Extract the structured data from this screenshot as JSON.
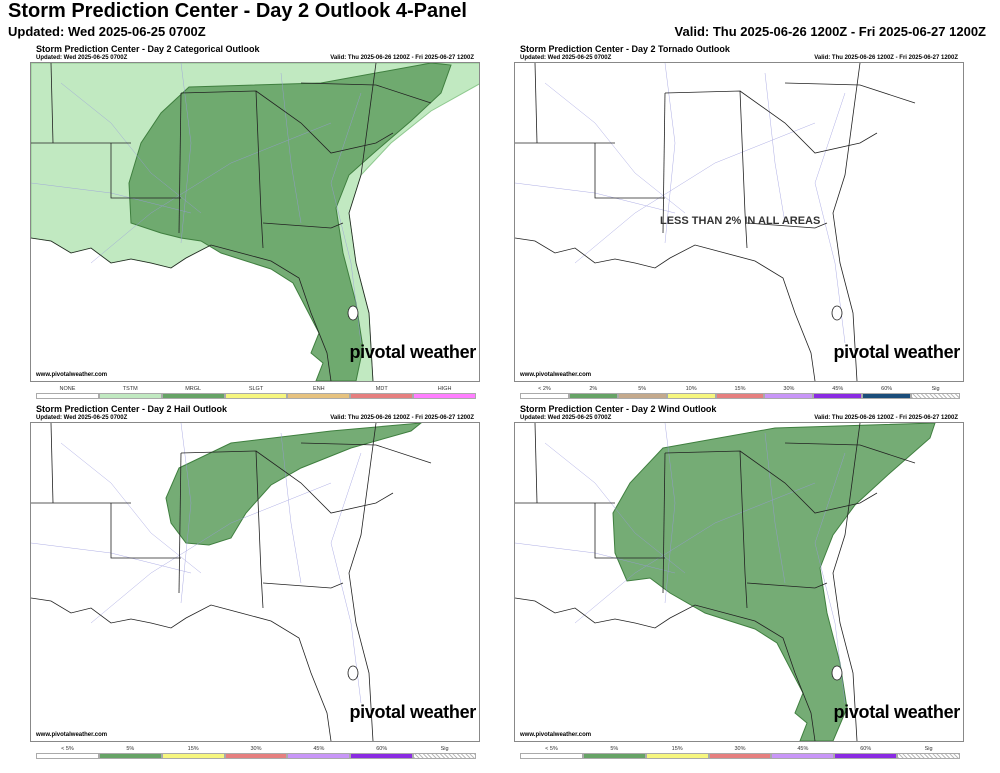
{
  "header": {
    "title": "Storm Prediction Center - Day 2 Outlook 4-Panel",
    "updated": "Updated: Wed 2025-06-25 0700Z",
    "valid": "Valid: Thu 2025-06-26 1200Z - Fri 2025-06-27 1200Z"
  },
  "panels": [
    {
      "title": "Storm Prediction Center - Day 2 Categorical Outlook",
      "updated": "Updated: Wed 2025-06-25 0700Z",
      "valid": "Valid: Thu 2025-06-26 1200Z - Fri 2025-06-27 1200Z",
      "source": "www.pivotalweather.com",
      "logo": "pivotal weather",
      "note": "",
      "legend": [
        {
          "label": "NONE",
          "color": "#ffffff"
        },
        {
          "label": "TSTM",
          "color": "#c1e9c1"
        },
        {
          "label": "MRGL",
          "color": "#66a366"
        },
        {
          "label": "SLGT",
          "color": "#f6f67f"
        },
        {
          "label": "ENH",
          "color": "#e6c27f"
        },
        {
          "label": "MDT",
          "color": "#e67f7f"
        },
        {
          "label": "HIGH",
          "color": "#ff7fff"
        }
      ]
    },
    {
      "title": "Storm Prediction Center - Day 2 Tornado Outlook",
      "updated": "Updated: Wed 2025-06-25 0700Z",
      "valid": "Valid: Thu 2025-06-26 1200Z - Fri 2025-06-27 1200Z",
      "source": "www.pivotalweather.com",
      "logo": "pivotal weather",
      "note": "LESS THAN 2% IN ALL AREAS",
      "legend": [
        {
          "label": "< 2%",
          "color": "#ffffff"
        },
        {
          "label": "2%",
          "color": "#66a366"
        },
        {
          "label": "5%",
          "color": "#c4a98c"
        },
        {
          "label": "10%",
          "color": "#f6f67f"
        },
        {
          "label": "15%",
          "color": "#e67f7f"
        },
        {
          "label": "30%",
          "color": "#c896f7"
        },
        {
          "label": "45%",
          "color": "#8a2be2"
        },
        {
          "label": "60%",
          "color": "#1a4d7a"
        },
        {
          "label": "Sig",
          "color": "hatch"
        }
      ]
    },
    {
      "title": "Storm Prediction Center - Day 2 Hail Outlook",
      "updated": "Updated: Wed 2025-06-25 0700Z",
      "valid": "Valid: Thu 2025-06-26 1200Z - Fri 2025-06-27 1200Z",
      "source": "www.pivotalweather.com",
      "logo": "pivotal weather",
      "note": "",
      "legend": [
        {
          "label": "< 5%",
          "color": "#ffffff"
        },
        {
          "label": "5%",
          "color": "#66a366"
        },
        {
          "label": "15%",
          "color": "#f6f67f"
        },
        {
          "label": "30%",
          "color": "#e67f7f"
        },
        {
          "label": "45%",
          "color": "#c896f7"
        },
        {
          "label": "60%",
          "color": "#8a2be2"
        },
        {
          "label": "Sig",
          "color": "hatch"
        }
      ]
    },
    {
      "title": "Storm Prediction Center - Day 2 Wind Outlook",
      "updated": "Updated: Wed 2025-06-25 0700Z",
      "valid": "Valid: Thu 2025-06-26 1200Z - Fri 2025-06-27 1200Z",
      "source": "www.pivotalweather.com",
      "logo": "pivotal weather",
      "note": "",
      "legend": [
        {
          "label": "< 5%",
          "color": "#ffffff"
        },
        {
          "label": "5%",
          "color": "#66a366"
        },
        {
          "label": "15%",
          "color": "#f6f67f"
        },
        {
          "label": "30%",
          "color": "#e67f7f"
        },
        {
          "label": "45%",
          "color": "#c896f7"
        },
        {
          "label": "60%",
          "color": "#8a2be2"
        },
        {
          "label": "Sig",
          "color": "hatch"
        }
      ]
    }
  ]
}
